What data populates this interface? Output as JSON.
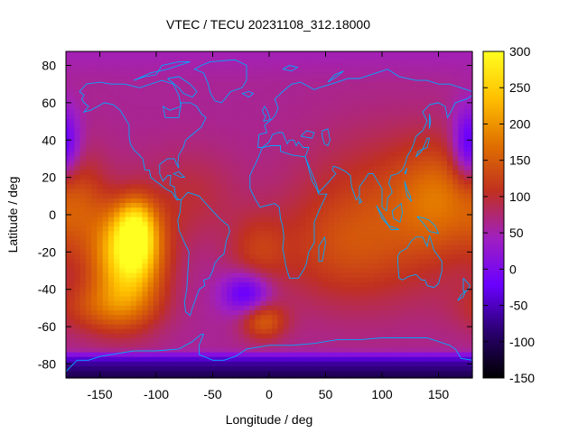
{
  "chart_data": {
    "type": "heatmap",
    "title": "VTEC / TECU 20231108_312.18000",
    "xlabel": "Longitude / deg",
    "ylabel": "Latitude / deg",
    "xlim": [
      -180,
      180
    ],
    "ylim": [
      -87.5,
      87.5
    ],
    "x_ticks": [
      -150,
      -100,
      -50,
      0,
      50,
      100,
      150
    ],
    "y_ticks": [
      -80,
      -60,
      -40,
      -20,
      0,
      20,
      40,
      60,
      80
    ],
    "colorbar": {
      "min": -150,
      "max": 300,
      "ticks": [
        -150,
        -100,
        -50,
        0,
        50,
        100,
        150,
        200,
        250,
        300
      ],
      "palette": [
        "#000000",
        "#2a0070",
        "#6a00ff",
        "#a020c0",
        "#c03020",
        "#e07000",
        "#ffc000",
        "#ffff20"
      ]
    },
    "background_level": 60,
    "features": [
      {
        "lon": -125,
        "lat": -22,
        "vtec": 265,
        "sx": 22,
        "sy": 20
      },
      {
        "lon": -118,
        "lat": -8,
        "vtec": 200,
        "sx": 12,
        "sy": 14
      },
      {
        "lon": -145,
        "lat": -50,
        "vtec": 130,
        "sx": 30,
        "sy": 10
      },
      {
        "lon": -170,
        "lat": 5,
        "vtec": 110,
        "sx": 18,
        "sy": 18
      },
      {
        "lon": -70,
        "lat": 10,
        "vtec": 95,
        "sx": 30,
        "sy": 18
      },
      {
        "lon": -10,
        "lat": -20,
        "vtec": 110,
        "sx": 18,
        "sy": 14
      },
      {
        "lon": -5,
        "lat": -57,
        "vtec": 150,
        "sx": 14,
        "sy": 7
      },
      {
        "lon": 105,
        "lat": 0,
        "vtec": 125,
        "sx": 55,
        "sy": 30
      },
      {
        "lon": 150,
        "lat": 10,
        "vtec": 130,
        "sx": 25,
        "sy": 20
      },
      {
        "lon": 60,
        "lat": -20,
        "vtec": 100,
        "sx": 40,
        "sy": 20
      },
      {
        "lon": -20,
        "lat": -42,
        "vtec": -40,
        "sx": 15,
        "sy": 8
      },
      {
        "lon": 175,
        "lat": 35,
        "vtec": -10,
        "sx": 10,
        "sy": 15
      },
      {
        "lon": -180,
        "lat": 38,
        "vtec": 10,
        "sx": 10,
        "sy": 12
      },
      {
        "lon": -120,
        "lat": 10,
        "vtec": 20,
        "sx": 15,
        "sy": 10
      }
    ],
    "south_polar_band": {
      "lat_top": -72,
      "lat_bottom": -87.5,
      "vtec_top": -20,
      "vtec_bottom": -110
    },
    "north_polar_band": {
      "lat": 85,
      "vtec": 40
    },
    "coastline_color": "#00a8ff"
  }
}
